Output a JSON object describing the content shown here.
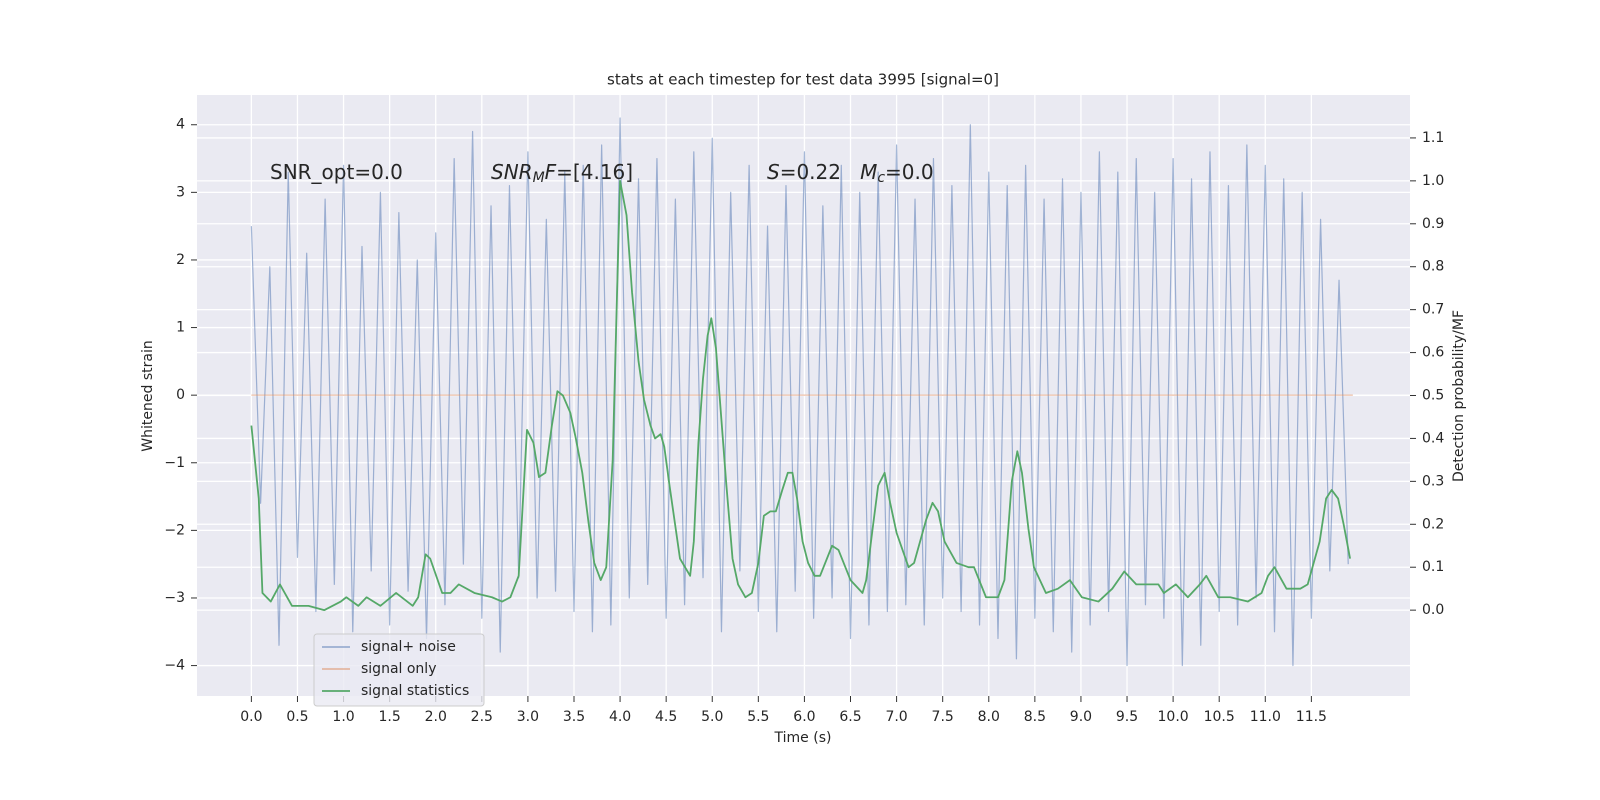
{
  "chart_data": {
    "type": "line",
    "title": "stats at each timestep for test data 3995 [signal=0]",
    "xlabel": "Time (s)",
    "ylabel": "Whitened strain",
    "y2label": "Detection probability/MF",
    "grid": true,
    "legend": "lower left",
    "xlim": [
      -0.59,
      12.57
    ],
    "ylim": [
      -4.45,
      4.44
    ],
    "y2lim": [
      -0.2,
      1.2
    ],
    "xticks": [
      {
        "value": 0,
        "label": "0.0"
      },
      {
        "value": 0.5,
        "label": "0.5"
      },
      {
        "value": 1,
        "label": "1.0"
      },
      {
        "value": 1.5,
        "label": "1.5"
      },
      {
        "value": 2,
        "label": "2.0"
      },
      {
        "value": 2.5,
        "label": "2.5"
      },
      {
        "value": 3,
        "label": "3.0"
      },
      {
        "value": 3.5,
        "label": "3.5"
      },
      {
        "value": 4,
        "label": "4.0"
      },
      {
        "value": 4.5,
        "label": "4.5"
      },
      {
        "value": 5,
        "label": "5.0"
      },
      {
        "value": 5.5,
        "label": "5.5"
      },
      {
        "value": 6,
        "label": "6.0"
      },
      {
        "value": 6.5,
        "label": "6.5"
      },
      {
        "value": 7,
        "label": "7.0"
      },
      {
        "value": 7.5,
        "label": "7.5"
      },
      {
        "value": 8,
        "label": "8.0"
      },
      {
        "value": 8.5,
        "label": "8.5"
      },
      {
        "value": 9,
        "label": "9.0"
      },
      {
        "value": 9.5,
        "label": "9.5"
      },
      {
        "value": 10,
        "label": "10.0"
      },
      {
        "value": 10.5,
        "label": "10.5"
      },
      {
        "value": 11,
        "label": "11.0"
      },
      {
        "value": 11.5,
        "label": "11.5"
      }
    ],
    "yticks": [
      {
        "value": -4,
        "label": "−4"
      },
      {
        "value": -3,
        "label": "−3"
      },
      {
        "value": -2,
        "label": "−2"
      },
      {
        "value": -1,
        "label": "−1"
      },
      0,
      1,
      2,
      3,
      4
    ],
    "y2ticks": [
      {
        "value": 0,
        "label": "0.0"
      },
      {
        "value": 0.1,
        "label": "0.1"
      },
      {
        "value": 0.2,
        "label": "0.2"
      },
      {
        "value": 0.3,
        "label": "0.3"
      },
      {
        "value": 0.4,
        "label": "0.4"
      },
      {
        "value": 0.5,
        "label": "0.5"
      },
      {
        "value": 0.6,
        "label": "0.6"
      },
      {
        "value": 0.7,
        "label": "0.7"
      },
      {
        "value": 0.8,
        "label": "0.8"
      },
      {
        "value": 0.9,
        "label": "0.9"
      },
      {
        "value": 1,
        "label": "1.0"
      },
      {
        "value": 1.1,
        "label": "1.1"
      }
    ],
    "annotations": [
      {
        "spans": [
          {
            "text": "SNR_opt=0.0",
            "style": "normal"
          }
        ]
      },
      {
        "spans": [
          {
            "text": "SNR",
            "style": "italic"
          },
          {
            "text": "M",
            "style": "sub"
          },
          {
            "text": "F",
            "style": "italic"
          },
          {
            "text": "=[4.16]",
            "style": "normal"
          }
        ]
      },
      {
        "spans": [
          {
            "text": "S",
            "style": "italic"
          },
          {
            "text": "=0.22   ",
            "style": "normal"
          },
          {
            "text": "M",
            "style": "italic"
          },
          {
            "text": "c",
            "style": "sub"
          },
          {
            "text": "=0.0",
            "style": "normal"
          }
        ]
      }
    ],
    "series": [
      {
        "name": "signal+ noise",
        "color": "#4c72b0",
        "alpha": 0.5,
        "axis": "y",
        "x": [
          0,
          0.1,
          0.2,
          0.3,
          0.4,
          0.5,
          0.6,
          0.7,
          0.8,
          0.9,
          1,
          1.1,
          1.2,
          1.3,
          1.4,
          1.5,
          1.6,
          1.7,
          1.8,
          1.9,
          2,
          2.1,
          2.2,
          2.3,
          2.4,
          2.5,
          2.6,
          2.7,
          2.8,
          2.9,
          3,
          3.1,
          3.2,
          3.3,
          3.4,
          3.5,
          3.6,
          3.7,
          3.8,
          3.9,
          4,
          4.1,
          4.2,
          4.3,
          4.4,
          4.5,
          4.6,
          4.7,
          4.8,
          4.9,
          5,
          5.1,
          5.2,
          5.3,
          5.4,
          5.5,
          5.6,
          5.7,
          5.8,
          5.9,
          6,
          6.1,
          6.2,
          6.3,
          6.4,
          6.5,
          6.6,
          6.7,
          6.8,
          6.9,
          7,
          7.1,
          7.2,
          7.3,
          7.4,
          7.5,
          7.6,
          7.7,
          7.8,
          7.9,
          8,
          8.1,
          8.2,
          8.3,
          8.4,
          8.5,
          8.6,
          8.7,
          8.8,
          8.9,
          9,
          9.1,
          9.2,
          9.3,
          9.4,
          9.5,
          9.6,
          9.7,
          9.8,
          9.9,
          10,
          10.1,
          10.2,
          10.3,
          10.4,
          10.5,
          10.6,
          10.7,
          10.8,
          10.9,
          11,
          11.1,
          11.2,
          11.3,
          11.4,
          11.5,
          11.6,
          11.7,
          11.8,
          11.9
        ],
        "values": [
          2.5,
          -1.6,
          1.9,
          -3.7,
          3.3,
          -2.4,
          2.1,
          -3.2,
          2.9,
          -2.8,
          3.4,
          -3.5,
          2.2,
          -2.6,
          3.0,
          -3.4,
          2.7,
          -2.9,
          2.0,
          -3.6,
          2.4,
          -3.1,
          3.5,
          -2.5,
          3.9,
          -3.3,
          2.8,
          -3.8,
          3.1,
          -2.7,
          3.6,
          -3.0,
          2.6,
          -2.9,
          3.3,
          -3.2,
          3.4,
          -3.5,
          3.7,
          -3.4,
          4.1,
          -3.0,
          3.2,
          -2.8,
          3.5,
          -3.3,
          2.9,
          -3.1,
          3.6,
          -2.7,
          3.8,
          -3.5,
          3.0,
          -2.6,
          3.4,
          -3.2,
          2.5,
          -3.5,
          3.1,
          -2.9,
          3.6,
          -3.3,
          2.8,
          -3.0,
          3.4,
          -3.6,
          3.0,
          -3.4,
          3.3,
          -3.2,
          3.7,
          -3.1,
          2.9,
          -3.4,
          3.5,
          -3.0,
          3.1,
          -3.2,
          4.0,
          -3.4,
          3.3,
          -3.6,
          3.1,
          -3.9,
          3.4,
          -3.3,
          2.9,
          -3.5,
          3.2,
          -3.8,
          3.0,
          -3.4,
          3.6,
          -3.2,
          3.3,
          -4.0,
          3.5,
          -3.1,
          3.0,
          -3.3,
          3.5,
          -4.0,
          3.2,
          -3.7,
          3.6,
          -3.2,
          3.1,
          -3.4,
          3.7,
          -3.0,
          3.4,
          -3.5,
          3.2,
          -4.0,
          3.0,
          -3.3,
          2.6,
          -2.6,
          1.7,
          -2.5
        ]
      },
      {
        "name": "signal only",
        "color": "#dd8452",
        "alpha": 0.5,
        "axis": "y",
        "x": [
          0,
          11.95
        ],
        "values": [
          0,
          0
        ]
      },
      {
        "name": "signal statistics",
        "color": "#55a868",
        "alpha": 1,
        "axis": "y2",
        "x": [
          0,
          0.08,
          0.12,
          0.21,
          0.31,
          0.44,
          0.62,
          0.79,
          0.97,
          1.03,
          1.16,
          1.25,
          1.4,
          1.57,
          1.75,
          1.81,
          1.89,
          1.94,
          2.07,
          2.16,
          2.25,
          2.42,
          2.61,
          2.72,
          2.81,
          2.9,
          2.99,
          3.06,
          3.12,
          3.19,
          3.26,
          3.32,
          3.38,
          3.46,
          3.52,
          3.59,
          3.66,
          3.72,
          3.79,
          3.85,
          3.92,
          3.96,
          4.0,
          4.07,
          4.13,
          4.2,
          4.26,
          4.33,
          4.38,
          4.44,
          4.48,
          4.53,
          4.59,
          4.65,
          4.76,
          4.8,
          4.85,
          4.9,
          4.95,
          4.99,
          5.04,
          5.09,
          5.15,
          5.22,
          5.28,
          5.36,
          5.43,
          5.5,
          5.56,
          5.63,
          5.69,
          5.76,
          5.82,
          5.87,
          5.92,
          5.98,
          6.04,
          6.11,
          6.17,
          6.3,
          6.37,
          6.5,
          6.63,
          6.67,
          6.74,
          6.8,
          6.87,
          6.93,
          7.0,
          7.13,
          7.19,
          7.32,
          7.39,
          7.45,
          7.52,
          7.65,
          7.78,
          7.84,
          7.97,
          8.1,
          8.17,
          8.25,
          8.31,
          8.36,
          8.43,
          8.49,
          8.62,
          8.75,
          8.88,
          9.01,
          9.19,
          9.34,
          9.47,
          9.6,
          9.84,
          9.9,
          10.03,
          10.16,
          10.29,
          10.36,
          10.49,
          10.62,
          10.81,
          10.96,
          11.03,
          11.1,
          11.23,
          11.38,
          11.46,
          11.59,
          11.66,
          11.72,
          11.79,
          11.85,
          11.92
        ],
        "values": [
          0.43,
          0.26,
          0.04,
          0.02,
          0.06,
          0.01,
          0.01,
          0,
          0.02,
          0.03,
          0.01,
          0.03,
          0.01,
          0.04,
          0.01,
          0.03,
          0.13,
          0.12,
          0.04,
          0.04,
          0.06,
          0.04,
          0.03,
          0.02,
          0.03,
          0.08,
          0.42,
          0.39,
          0.31,
          0.32,
          0.43,
          0.51,
          0.5,
          0.46,
          0.4,
          0.32,
          0.2,
          0.11,
          0.07,
          0.1,
          0.35,
          0.68,
          1.0,
          0.92,
          0.74,
          0.58,
          0.49,
          0.43,
          0.4,
          0.41,
          0.38,
          0.3,
          0.21,
          0.12,
          0.08,
          0.16,
          0.39,
          0.54,
          0.64,
          0.68,
          0.61,
          0.47,
          0.3,
          0.12,
          0.06,
          0.03,
          0.04,
          0.11,
          0.22,
          0.23,
          0.23,
          0.28,
          0.32,
          0.32,
          0.26,
          0.16,
          0.11,
          0.08,
          0.08,
          0.15,
          0.14,
          0.07,
          0.04,
          0.07,
          0.19,
          0.29,
          0.32,
          0.25,
          0.18,
          0.1,
          0.11,
          0.21,
          0.25,
          0.23,
          0.16,
          0.11,
          0.1,
          0.1,
          0.03,
          0.03,
          0.07,
          0.3,
          0.37,
          0.32,
          0.19,
          0.1,
          0.04,
          0.05,
          0.07,
          0.03,
          0.02,
          0.05,
          0.09,
          0.06,
          0.06,
          0.04,
          0.06,
          0.03,
          0.06,
          0.08,
          0.03,
          0.03,
          0.02,
          0.04,
          0.08,
          0.1,
          0.05,
          0.05,
          0.06,
          0.16,
          0.26,
          0.28,
          0.26,
          0.2,
          0.12
        ]
      }
    ]
  }
}
